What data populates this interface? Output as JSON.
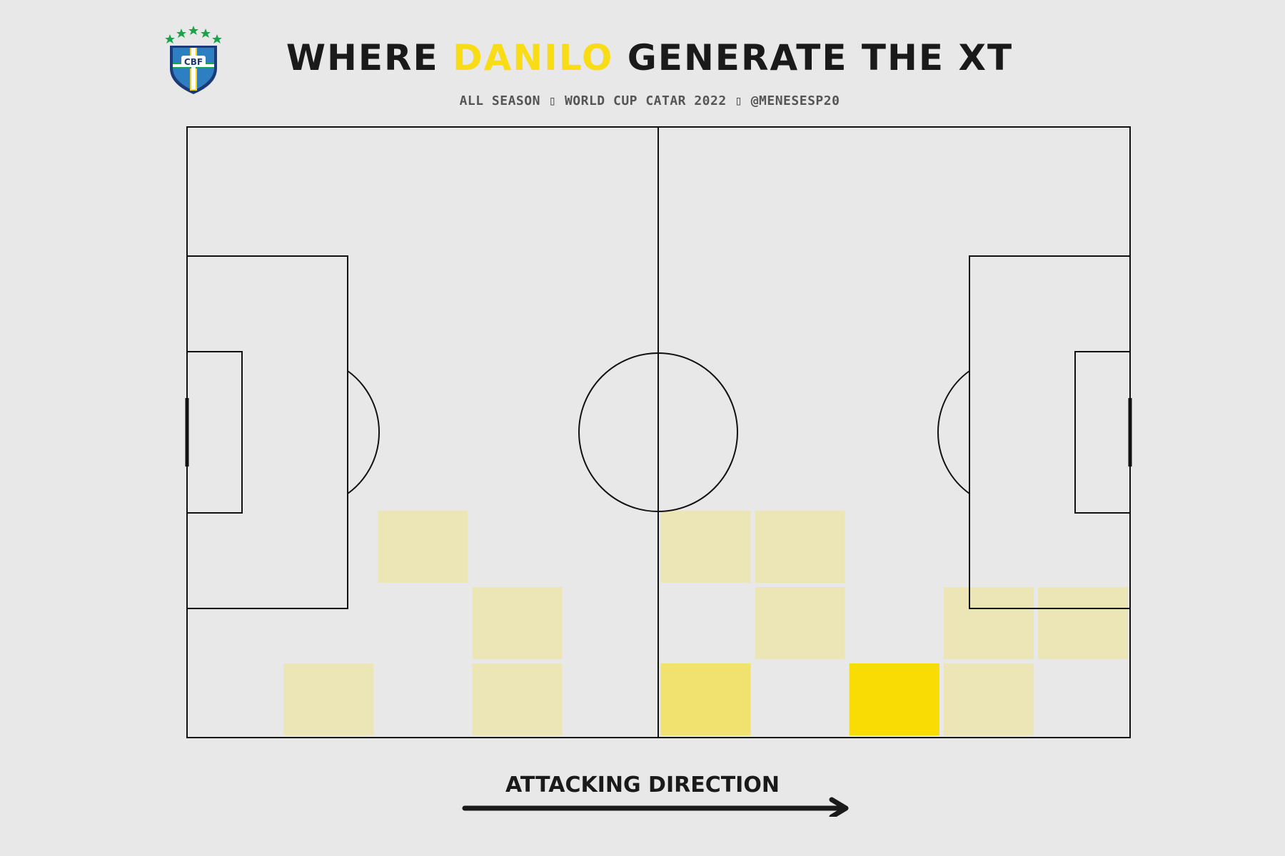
{
  "header": {
    "title_before": "WHERE ",
    "title_highlight": "DANILO",
    "title_after": " GENERATE THE XT",
    "subtitle": "ALL SEASON ▯ WORLD CUP CATAR 2022 ▯ @MENESESP20",
    "logo_text": "CBF"
  },
  "footer": {
    "direction_label": "ATTACKING DIRECTION"
  },
  "colors": {
    "background": "#e8e8e8",
    "highlight": "#f8dc16",
    "heat_high": "#f8dc04",
    "heat_mid": "#f1e16f",
    "heat_low": "#ece6b7"
  },
  "chart_data": {
    "type": "heatmap",
    "grid": {
      "cols": 10,
      "rows": 8
    },
    "title": "WHERE DANILO GENERATE THE XT",
    "xlabel": "ATTACKING DIRECTION",
    "cells": [
      {
        "col": 2,
        "row": 5,
        "level": 1
      },
      {
        "col": 5,
        "row": 5,
        "level": 1
      },
      {
        "col": 6,
        "row": 5,
        "level": 1
      },
      {
        "col": 3,
        "row": 6,
        "level": 1
      },
      {
        "col": 6,
        "row": 6,
        "level": 1
      },
      {
        "col": 8,
        "row": 6,
        "level": 1
      },
      {
        "col": 9,
        "row": 6,
        "level": 1
      },
      {
        "col": 1,
        "row": 7,
        "level": 1
      },
      {
        "col": 3,
        "row": 7,
        "level": 1
      },
      {
        "col": 5,
        "row": 7,
        "level": 2
      },
      {
        "col": 7,
        "row": 7,
        "level": 3
      },
      {
        "col": 8,
        "row": 7,
        "level": 1
      }
    ]
  }
}
